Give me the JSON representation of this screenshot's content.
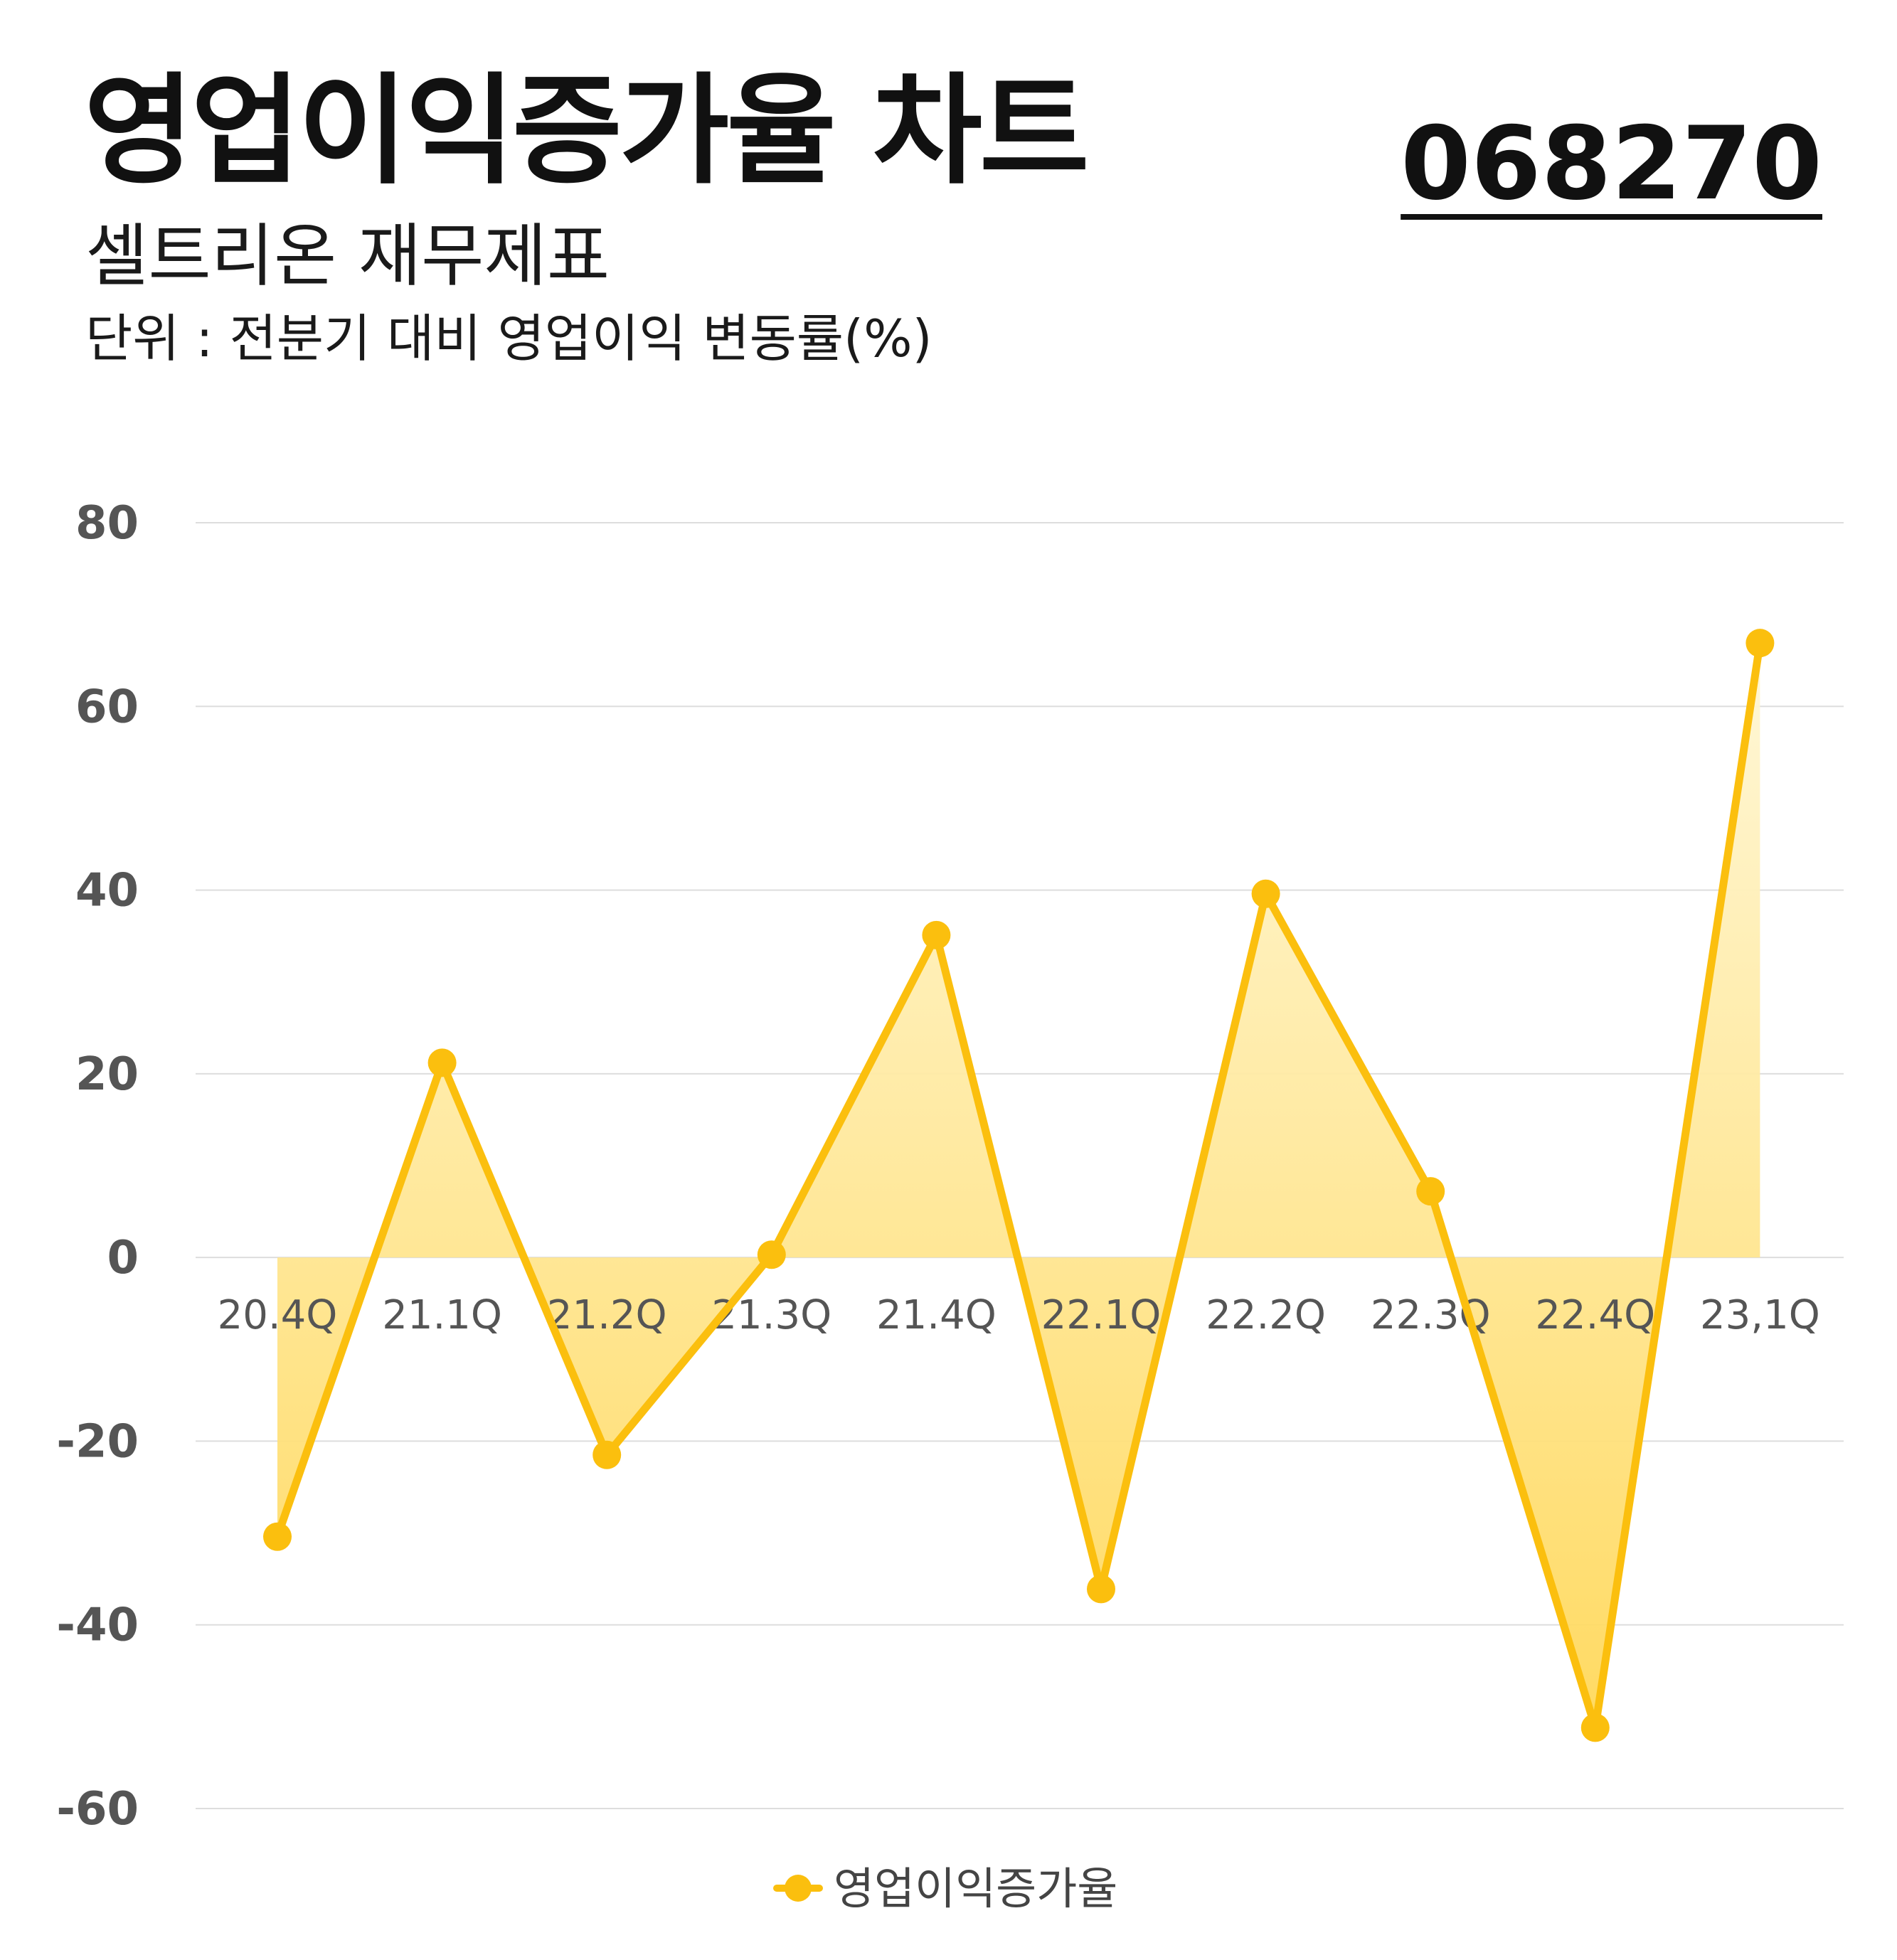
{
  "header": {
    "title": "영업이익증가율 차트",
    "code": "068270",
    "subtitle": "셀트리온 재무제표",
    "unit": "단위 : 전분기 대비 영업이익 변동률(%)"
  },
  "colors": {
    "line": "#FBBF0E",
    "fill_top": "#FFF7D6",
    "fill_bottom": "#FFD85A",
    "grid": "#DDDDDD",
    "tick": "#555555"
  },
  "chart_data": {
    "type": "line",
    "categories": [
      "20.4Q",
      "21.1Q",
      "21.2Q",
      "21.3Q",
      "21.4Q",
      "22.1Q",
      "22.2Q",
      "22.3Q",
      "22.4Q",
      "23,1Q"
    ],
    "series": [
      {
        "name": "영업이익증가율",
        "values": [
          -30.4,
          21.2,
          -21.5,
          0.3,
          35.1,
          -36.1,
          39.6,
          7.2,
          -51.2,
          66.9
        ]
      }
    ],
    "yticks": [
      "80",
      "60",
      "40",
      "20",
      "0",
      "-20",
      "-40",
      "-60"
    ],
    "ylim": [
      -60,
      80
    ],
    "grid": true,
    "area_fill": true,
    "legend_position": "bottom-center"
  }
}
